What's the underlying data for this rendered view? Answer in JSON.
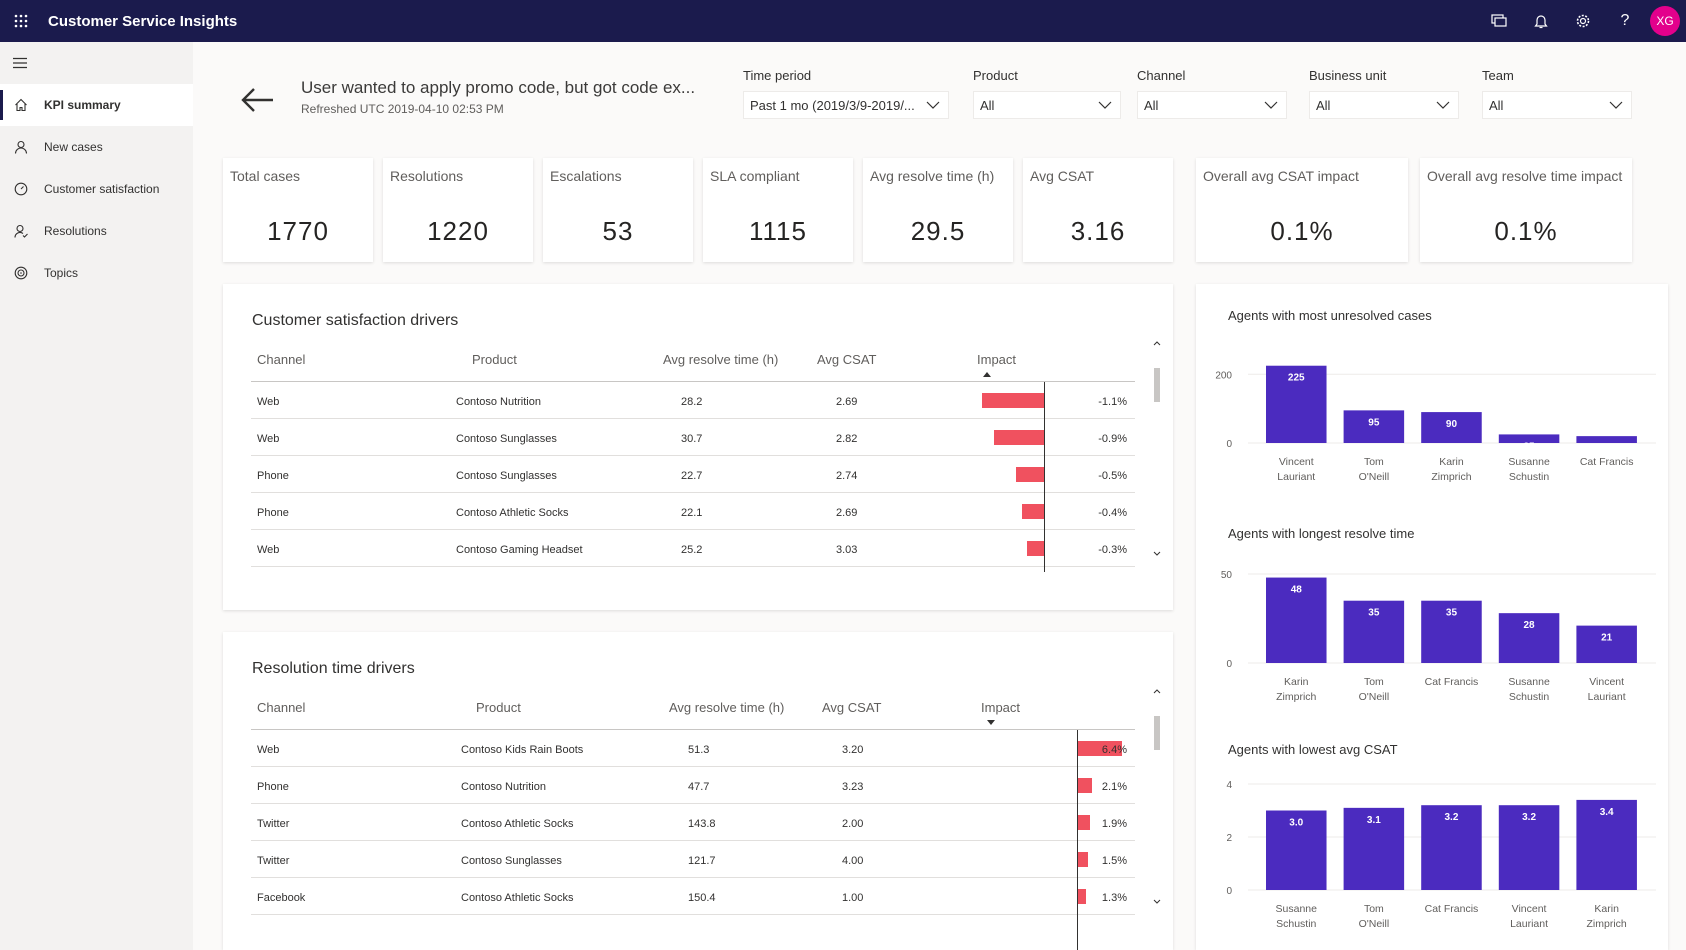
{
  "app": {
    "title": "Customer Service Insights",
    "avatar_initials": "XG"
  },
  "icons": {
    "waffle": "waffle-icon",
    "chat": "chat-icon",
    "bell": "bell-icon",
    "gear": "gear-icon",
    "help": "help-icon",
    "menu": "hamburger-icon",
    "back": "back-arrow-icon"
  },
  "sidebar": {
    "items": [
      {
        "label": "KPI summary",
        "icon": "home-icon",
        "active": true
      },
      {
        "label": "New cases",
        "icon": "person-icon"
      },
      {
        "label": "Customer satisfaction",
        "icon": "gauge-icon"
      },
      {
        "label": "Resolutions",
        "icon": "person-check-icon"
      },
      {
        "label": "Topics",
        "icon": "topics-icon"
      }
    ]
  },
  "header": {
    "title": "User wanted to apply promo code, but got code ex...",
    "refreshed": "Refreshed UTC 2019-04-10 02:53 PM"
  },
  "filters": [
    {
      "label": "Time period",
      "value": "Past 1 mo (2019/3/9-2019/..."
    },
    {
      "label": "Product",
      "value": "All"
    },
    {
      "label": "Channel",
      "value": "All"
    },
    {
      "label": "Business unit",
      "value": "All"
    },
    {
      "label": "Team",
      "value": "All"
    }
  ],
  "kpis": [
    {
      "label": "Total cases",
      "value": "1770"
    },
    {
      "label": "Resolutions",
      "value": "1220"
    },
    {
      "label": "Escalations",
      "value": "53"
    },
    {
      "label": "SLA compliant",
      "value": "1115"
    },
    {
      "label": "Avg resolve time (h)",
      "value": "29.5"
    },
    {
      "label": "Avg CSAT",
      "value": "3.16"
    },
    {
      "label": "Overall avg CSAT impact",
      "value": "0.1%"
    },
    {
      "label": "Overall avg resolve time impact",
      "value": "0.1%"
    }
  ],
  "csat_drivers": {
    "title": "Customer satisfaction drivers",
    "columns": [
      "Channel",
      "Product",
      "Avg resolve time (h)",
      "Avg CSAT",
      "Impact"
    ],
    "rows": [
      {
        "channel": "Web",
        "product": "Contoso Nutrition",
        "resolve": "28.2",
        "csat": "2.69",
        "impact": "-1.1%",
        "impact_value": -1.1
      },
      {
        "channel": "Web",
        "product": "Contoso Sunglasses",
        "resolve": "30.7",
        "csat": "2.82",
        "impact": "-0.9%",
        "impact_value": -0.9
      },
      {
        "channel": "Phone",
        "product": "Contoso Sunglasses",
        "resolve": "22.7",
        "csat": "2.74",
        "impact": "-0.5%",
        "impact_value": -0.5
      },
      {
        "channel": "Phone",
        "product": "Contoso Athletic Socks",
        "resolve": "22.1",
        "csat": "2.69",
        "impact": "-0.4%",
        "impact_value": -0.4
      },
      {
        "channel": "Web",
        "product": "Contoso Gaming Headset",
        "resolve": "25.2",
        "csat": "3.03",
        "impact": "-0.3%",
        "impact_value": -0.3
      }
    ]
  },
  "resolution_drivers": {
    "title": "Resolution time drivers",
    "columns": [
      "Channel",
      "Product",
      "Avg resolve time (h)",
      "Avg CSAT",
      "Impact"
    ],
    "rows": [
      {
        "channel": "Web",
        "product": "Contoso Kids Rain Boots",
        "resolve": "51.3",
        "csat": "3.20",
        "impact": "6.4%",
        "impact_value": 6.4
      },
      {
        "channel": "Phone",
        "product": "Contoso Nutrition",
        "resolve": "47.7",
        "csat": "3.23",
        "impact": "2.1%",
        "impact_value": 2.1
      },
      {
        "channel": "Twitter",
        "product": "Contoso Athletic Socks",
        "resolve": "143.8",
        "csat": "2.00",
        "impact": "1.9%",
        "impact_value": 1.9
      },
      {
        "channel": "Twitter",
        "product": "Contoso Sunglasses",
        "resolve": "121.7",
        "csat": "4.00",
        "impact": "1.5%",
        "impact_value": 1.5
      },
      {
        "channel": "Facebook",
        "product": "Contoso Athletic Socks",
        "resolve": "150.4",
        "csat": "1.00",
        "impact": "1.3%",
        "impact_value": 1.3
      }
    ]
  },
  "colors": {
    "bar": "#4b2bbf",
    "impact": "#f0515f",
    "topbar": "#1b1b4d"
  },
  "chart_data": [
    {
      "type": "bar",
      "title": "Agents with most unresolved cases",
      "categories": [
        [
          "Vincent",
          "Lauriant"
        ],
        [
          "Tom",
          "O'Neill"
        ],
        [
          "Karin",
          "Zimprich"
        ],
        [
          "Susanne",
          "Schustin"
        ],
        [
          "Cat Francis"
        ]
      ],
      "values": [
        225,
        95,
        90,
        25,
        20
      ],
      "labels": [
        "225",
        "95",
        "90",
        "25",
        "20"
      ],
      "yticks": [
        0,
        200
      ],
      "ylim": [
        0,
        230
      ]
    },
    {
      "type": "bar",
      "title": "Agents with longest resolve time",
      "categories": [
        [
          "Karin",
          "Zimprich"
        ],
        [
          "Tom",
          "O'Neill"
        ],
        [
          "Cat Francis"
        ],
        [
          "Susanne",
          "Schustin"
        ],
        [
          "Vincent",
          "Lauriant"
        ]
      ],
      "values": [
        48,
        35,
        35,
        28,
        21
      ],
      "labels": [
        "48",
        "35",
        "35",
        "28",
        "21"
      ],
      "yticks": [
        0,
        50
      ],
      "ylim": [
        0,
        50
      ]
    },
    {
      "type": "bar",
      "title": "Agents with lowest avg CSAT",
      "categories": [
        [
          "Susanne",
          "Schustin"
        ],
        [
          "Tom",
          "O'Neill"
        ],
        [
          "Cat Francis"
        ],
        [
          "Vincent",
          "Lauriant"
        ],
        [
          "Karin",
          "Zimprich"
        ]
      ],
      "values": [
        3.0,
        3.1,
        3.2,
        3.2,
        3.4
      ],
      "labels": [
        "3.0",
        "3.1",
        "3.2",
        "3.2",
        "3.4"
      ],
      "yticks": [
        0,
        2,
        4
      ],
      "ylim": [
        0,
        4
      ]
    }
  ]
}
